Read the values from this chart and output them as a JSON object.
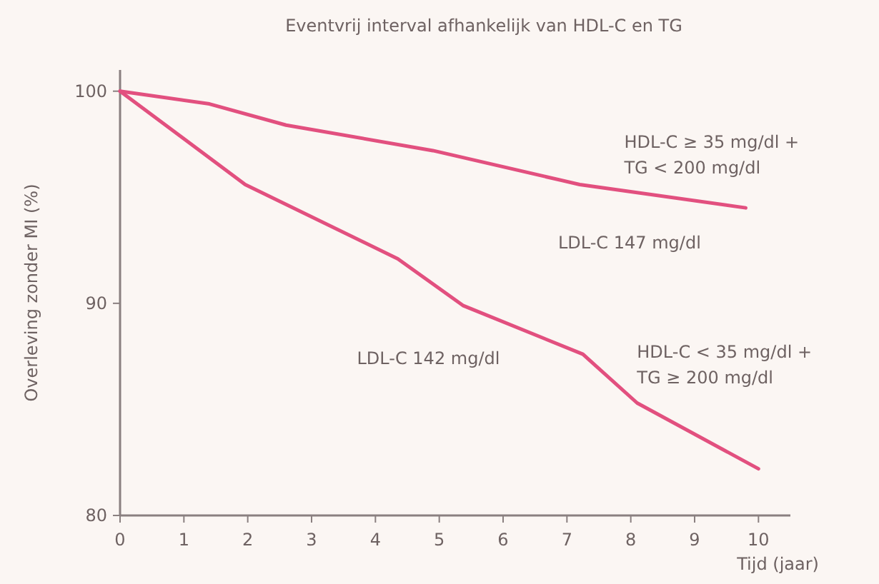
{
  "chart_data": {
    "type": "line",
    "title": "Eventvrij interval afhankelijk van HDL-C en TG",
    "xlabel": "Tijd (jaar)",
    "ylabel": "Overleving zonder MI (%)",
    "xlim": [
      0,
      10.5
    ],
    "xticks": [
      0,
      1,
      2,
      3,
      4,
      5,
      6,
      7,
      8,
      9,
      10
    ],
    "ylim": [
      80,
      101
    ],
    "yticks": [
      80,
      90,
      100
    ],
    "grid": false,
    "marker": "none",
    "line_style": "solid",
    "series": [
      {
        "name": "HDL-C ≥ 35 mg/dl + TG < 200 mg/dl",
        "color": "#e2507f",
        "x": [
          0,
          1.4,
          2.6,
          4.9,
          7.2,
          9.8
        ],
        "values": [
          100,
          99.4,
          98.4,
          97.2,
          95.6,
          94.5
        ]
      },
      {
        "name": "HDL-C < 35 mg/dl + TG ≥ 200 mg/dl",
        "color": "#e2507f",
        "x": [
          0,
          1.96,
          4.35,
          5.37,
          7.25,
          8.1,
          10
        ],
        "values": [
          100,
          95.6,
          92.1,
          89.9,
          87.6,
          85.3,
          82.2
        ]
      }
    ],
    "annotations": [
      "LDL-C 147 mg/dl",
      "LDL-C 142 mg/dl"
    ]
  }
}
